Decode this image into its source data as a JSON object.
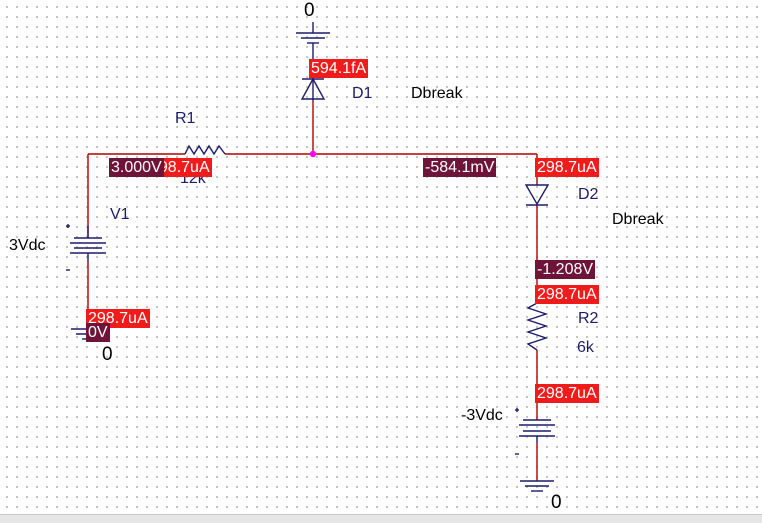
{
  "components": {
    "r1": {
      "name": "R1",
      "value": "12k"
    },
    "r2": {
      "name": "R2",
      "value": "6k"
    },
    "v1": {
      "name": "V1",
      "value": "3Vdc"
    },
    "v2": {
      "value": "-3Vdc"
    },
    "d1": {
      "name": "D1",
      "model": "Dbreak"
    },
    "d2": {
      "name": "D2",
      "model": "Dbreak"
    }
  },
  "ground_labels": {
    "top": "0",
    "left": "0",
    "bottom": "0"
  },
  "voltage_markers": {
    "v1_node": "3.000V",
    "junction_node": "-584.1mV",
    "d2_r2_node": "-1.208V",
    "left_ground": "0V"
  },
  "current_markers": {
    "d1": "594.1fA",
    "r1": "298.7uA",
    "d2": "298.7uA",
    "r2": "298.7uA",
    "v2": "298.7uA",
    "v1": "298.7uA"
  },
  "colors": {
    "wire": "#b40000",
    "symbol": "#1c1c6a",
    "current_marker": "#f01c1c",
    "voltage_marker": "#6e1438",
    "junction": "#ff00ff"
  }
}
